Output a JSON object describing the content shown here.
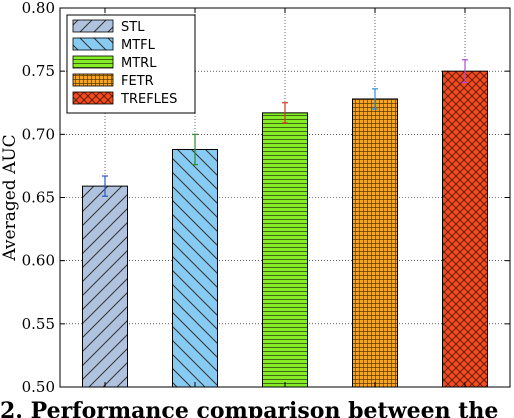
{
  "chart_data": {
    "type": "bar",
    "categories": [
      "STL",
      "MTFL",
      "MTRL",
      "FETR",
      "TREFLES"
    ],
    "values": [
      0.659,
      0.688,
      0.717,
      0.728,
      0.75
    ],
    "errors": [
      0.008,
      0.012,
      0.008,
      0.008,
      0.009
    ],
    "colors": [
      "#afc3df",
      "#87cbf3",
      "#86ec25",
      "#f5a623",
      "#f04c1e"
    ],
    "error_colors": [
      "#2c55c9",
      "#2c8a2c",
      "#d43a1a",
      "#2c8fd0",
      "#b84ad6"
    ],
    "patterns": [
      "forward-diagonal",
      "back-diagonal",
      "horizontal",
      "grid",
      "crosshatch"
    ],
    "ylabel": "Averaged AUC",
    "xlabel": "",
    "ylim": [
      0.5,
      0.8
    ],
    "yticks": [
      "0.50",
      "0.55",
      "0.60",
      "0.65",
      "0.70",
      "0.75",
      "0.80"
    ],
    "grid": true,
    "legend_position": "top-left"
  },
  "caption": "2. Performance comparison between the"
}
